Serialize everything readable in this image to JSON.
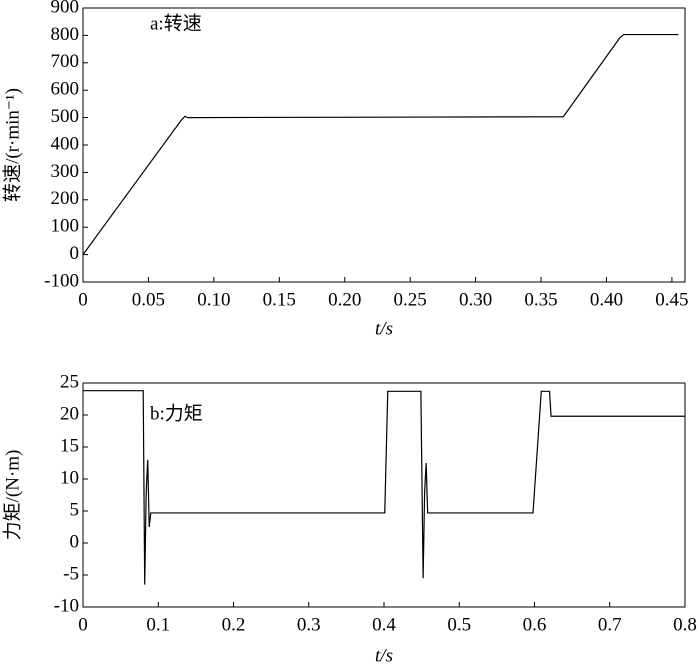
{
  "chart_data": [
    {
      "type": "line",
      "annotation": "a:转速",
      "xlabel": "t/s",
      "ylabel": "转速/(r·min⁻¹)",
      "x": [
        0,
        0.075,
        0.078,
        0.08,
        0.367,
        0.41,
        0.413,
        0.455
      ],
      "series": [
        {
          "color": "#000000",
          "values": [
            0,
            490,
            505,
            500,
            503,
            790,
            803,
            803
          ]
        }
      ],
      "xlim": [
        0,
        0.46
      ],
      "ylim": [
        -100,
        900
      ],
      "xticks": [
        0,
        0.05,
        {
          "value": 0.1,
          "label": "0.10"
        },
        0.15,
        {
          "value": 0.2,
          "label": "0.20"
        },
        0.25,
        {
          "value": 0.3,
          "label": "0.30"
        },
        0.35,
        {
          "value": 0.4,
          "label": "0.40"
        },
        0.45
      ],
      "yticks": [
        -100,
        0,
        100,
        200,
        300,
        400,
        500,
        600,
        700,
        800,
        900
      ]
    },
    {
      "type": "line",
      "annotation": "b:力矩",
      "xlabel": "t/s",
      "ylabel": "力矩/(N·m)",
      "x": [
        0,
        0.08,
        0.082,
        0.084,
        0.086,
        0.088,
        0.09,
        0.401,
        0.405,
        0.449,
        0.452,
        0.454,
        0.456,
        0.458,
        0.598,
        0.609,
        0.612,
        0.62,
        0.622,
        0.8
      ],
      "series": [
        {
          "color": "#000000",
          "values": [
            23.8,
            23.8,
            -6.5,
            8,
            13,
            2.5,
            4.7,
            4.7,
            23.7,
            23.7,
            -5.5,
            8,
            12.5,
            4.7,
            4.7,
            23.7,
            23.7,
            23.7,
            19.8,
            19.8
          ]
        }
      ],
      "xlim": [
        0,
        0.8
      ],
      "ylim": [
        -10,
        25
      ],
      "xticks": [
        0,
        0.1,
        0.2,
        0.3,
        0.4,
        0.5,
        0.6,
        0.7,
        0.8
      ],
      "yticks": [
        -10,
        -5,
        0,
        5,
        10,
        15,
        20,
        25
      ]
    }
  ]
}
